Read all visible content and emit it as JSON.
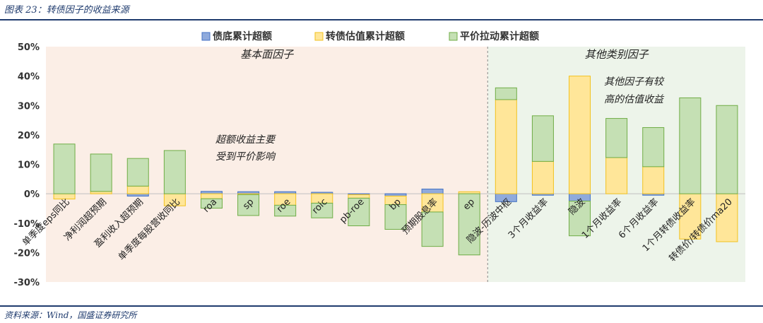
{
  "header": {
    "title": "图表 23：转债因子的收益来源"
  },
  "footer": {
    "source": "资料来源：Wind，国盛证券研究所"
  },
  "chart_data": {
    "type": "bar",
    "stacked": true,
    "ylim": [
      -30,
      50
    ],
    "yticks": [
      "50%",
      "40%",
      "30%",
      "20%",
      "10%",
      "0%",
      "-10%",
      "-20%",
      "-30%"
    ],
    "legend_position": "top",
    "categories": [
      "单季度eps同比",
      "净利润超预期",
      "盈利收入超预期",
      "单季度每股营收同比",
      "roa",
      "sp",
      "roe",
      "roic",
      "pb-roe",
      "bp",
      "预期股息率",
      "ep",
      "隐波-历波中枢",
      "3个月收益率",
      "隐波",
      "1个月收益率",
      "6个月收益率",
      "1个月转债收益率",
      "转债价/转债价ma20"
    ],
    "series": [
      {
        "name": "债底累计超额",
        "color": "#8faadc",
        "border": "#4472c4",
        "values": [
          0,
          0,
          -0.8,
          0,
          0.8,
          0.7,
          0.7,
          0.5,
          -0.3,
          -0.8,
          1.6,
          0,
          -2.7,
          -0.5,
          -2.5,
          0,
          -0.5,
          0,
          0
        ]
      },
      {
        "name": "转债估值累计超额",
        "color": "#ffe699",
        "border": "#f2c21f",
        "values": [
          -1.8,
          0.8,
          2.6,
          -4.1,
          -1.7,
          -0.3,
          -3.9,
          -3.2,
          -1.2,
          -2.9,
          -6.2,
          0.7,
          32,
          11,
          40,
          12.3,
          9.2,
          -15.4,
          -16.3
        ]
      },
      {
        "name": "平价拉动累计超额",
        "color": "#c5e0b4",
        "border": "#70ad47",
        "values": [
          16.9,
          12.7,
          9.4,
          14.7,
          -3.2,
          -7.1,
          -3.7,
          -5,
          -9.4,
          -8.4,
          -11.7,
          -20.8,
          4,
          15.5,
          -11.8,
          13.3,
          13.3,
          32.6,
          30
        ]
      }
    ],
    "regions": [
      {
        "label": "基本面因子",
        "from": 0,
        "to": 11,
        "color": "#fbeee6"
      },
      {
        "label": "其他类别因子",
        "from": 12,
        "to": 18,
        "color": "#edf4ea"
      }
    ],
    "annotations": [
      "超额收益主要受到平价影响",
      "其他因子有较高的估值收益"
    ]
  }
}
